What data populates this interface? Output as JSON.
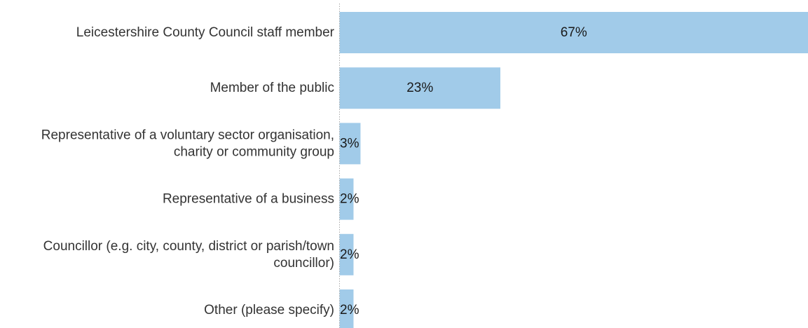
{
  "chart_data": {
    "type": "bar",
    "orientation": "horizontal",
    "title": "",
    "xlabel": "",
    "ylabel": "",
    "categories": [
      "Leicestershire County Council staff member",
      "Member of the public",
      "Representative of a voluntary sector organisation, charity or community group",
      "Representative of a business",
      "Councillor (e.g. city, county, district or parish/town councillor)",
      "Other (please specify)"
    ],
    "category_lines": [
      [
        "Leicestershire County Council staff member"
      ],
      [
        "Member of the public"
      ],
      [
        "Representative of a voluntary sector organisation,",
        "charity or community group"
      ],
      [
        "Representative of a business"
      ],
      [
        "Councillor (e.g. city, county, district or parish/town",
        "councillor)"
      ],
      [
        "Other (please specify)"
      ]
    ],
    "values": [
      67,
      23,
      3,
      2,
      2,
      2
    ],
    "data_labels": [
      "67%",
      "23%",
      "3%",
      "2%",
      "2%",
      "2%"
    ],
    "xlim": [
      0,
      67
    ],
    "grid": false,
    "legend": "none",
    "bar_color": "#a1cbe9",
    "axis_line_color": "#aaaaaa"
  }
}
